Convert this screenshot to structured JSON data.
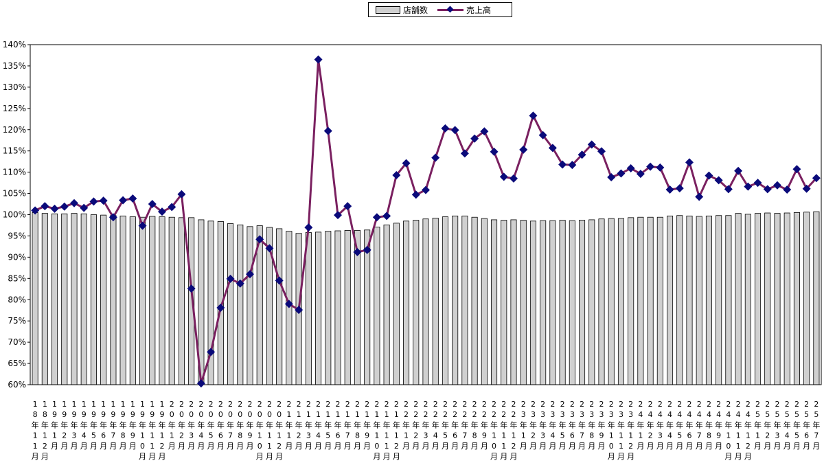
{
  "chart_data": {
    "type": "bar+line",
    "title": "",
    "xlabel": "",
    "ylabel": "",
    "ylim": [
      0.6,
      1.4
    ],
    "y_ticks": [
      "60%",
      "65%",
      "70%",
      "75%",
      "80%",
      "85%",
      "90%",
      "95%",
      "100%",
      "105%",
      "110%",
      "115%",
      "120%",
      "125%",
      "130%",
      "135%",
      "140%"
    ],
    "legend_position": "top-center",
    "grid": false,
    "colors": {
      "bar_fill": "#d0d0d0",
      "bar_stroke": "#000000",
      "line": "#7a2060",
      "marker": "#0a0a7a"
    },
    "categories": [
      "18年11月",
      "18年12月",
      "19年1月",
      "19年2月",
      "19年3月",
      "19年4月",
      "19年5月",
      "19年6月",
      "19年7月",
      "19年8月",
      "19年9月",
      "19年10月",
      "19年11月",
      "19年12月",
      "20年1月",
      "20年2月",
      "20年3月",
      "20年4月",
      "20年5月",
      "20年6月",
      "20年7月",
      "20年8月",
      "20年9月",
      "20年10月",
      "20年11月",
      "20年12月",
      "21年1月",
      "21年2月",
      "21年3月",
      "21年4月",
      "21年5月",
      "21年6月",
      "21年7月",
      "21年8月",
      "21年9月",
      "21年10月",
      "21年11月",
      "21年12月",
      "22年1月",
      "22年2月",
      "22年3月",
      "22年4月",
      "22年5月",
      "22年6月",
      "22年7月",
      "22年8月",
      "22年9月",
      "22年10月",
      "22年11月",
      "22年12月",
      "23年1月",
      "23年2月",
      "23年3月",
      "23年4月",
      "23年5月",
      "23年6月",
      "23年7月",
      "23年8月",
      "23年9月",
      "23年10月",
      "23年11月",
      "23年12月",
      "24年1月",
      "24年2月",
      "24年3月",
      "24年4月",
      "24年5月",
      "24年6月",
      "24年7月",
      "24年8月",
      "24年9月",
      "24年10月",
      "24年11月",
      "24年12月",
      "25年1月",
      "25年2月",
      "25年3月",
      "25年4月",
      "25年5月",
      "25年6月",
      "25年7月"
    ],
    "series": [
      {
        "name": "店舗数",
        "type": "bar",
        "values": [
          1.005,
          1.003,
          1.002,
          1.002,
          1.003,
          1.002,
          1.0,
          0.999,
          0.998,
          0.997,
          0.995,
          0.994,
          0.996,
          0.995,
          0.994,
          0.993,
          0.993,
          0.988,
          0.985,
          0.984,
          0.979,
          0.976,
          0.972,
          0.974,
          0.97,
          0.967,
          0.961,
          0.956,
          0.958,
          0.959,
          0.961,
          0.962,
          0.963,
          0.963,
          0.964,
          0.971,
          0.976,
          0.98,
          0.985,
          0.987,
          0.99,
          0.992,
          0.995,
          0.997,
          0.997,
          0.994,
          0.991,
          0.988,
          0.987,
          0.988,
          0.987,
          0.985,
          0.986,
          0.986,
          0.987,
          0.986,
          0.987,
          0.988,
          0.99,
          0.991,
          0.991,
          0.993,
          0.994,
          0.994,
          0.994,
          0.997,
          0.998,
          0.997,
          0.996,
          0.997,
          0.998,
          0.998,
          1.003,
          1.001,
          1.003,
          1.004,
          1.003,
          1.004,
          1.005,
          1.006,
          1.007
        ]
      },
      {
        "name": "売上高",
        "type": "line",
        "values": [
          1.01,
          1.02,
          1.014,
          1.019,
          1.027,
          1.016,
          1.031,
          1.033,
          0.994,
          1.034,
          1.038,
          0.974,
          1.025,
          1.007,
          1.018,
          1.048,
          0.826,
          0.603,
          0.677,
          0.781,
          0.849,
          0.838,
          0.86,
          0.942,
          0.921,
          0.845,
          0.79,
          0.776,
          0.97,
          1.365,
          1.197,
          0.999,
          1.02,
          0.912,
          0.917,
          0.994,
          0.997,
          1.093,
          1.121,
          1.047,
          1.058,
          1.134,
          1.203,
          1.199,
          1.144,
          1.179,
          1.196,
          1.148,
          1.089,
          1.085,
          1.153,
          1.233,
          1.187,
          1.157,
          1.118,
          1.117,
          1.141,
          1.165,
          1.149,
          1.088,
          1.097,
          1.109,
          1.096,
          1.113,
          1.111,
          1.059,
          1.062,
          1.123,
          1.042,
          1.092,
          1.081,
          1.06,
          1.103,
          1.066,
          1.075,
          1.06,
          1.069,
          1.059,
          1.107,
          1.061,
          1.086
        ]
      }
    ]
  }
}
